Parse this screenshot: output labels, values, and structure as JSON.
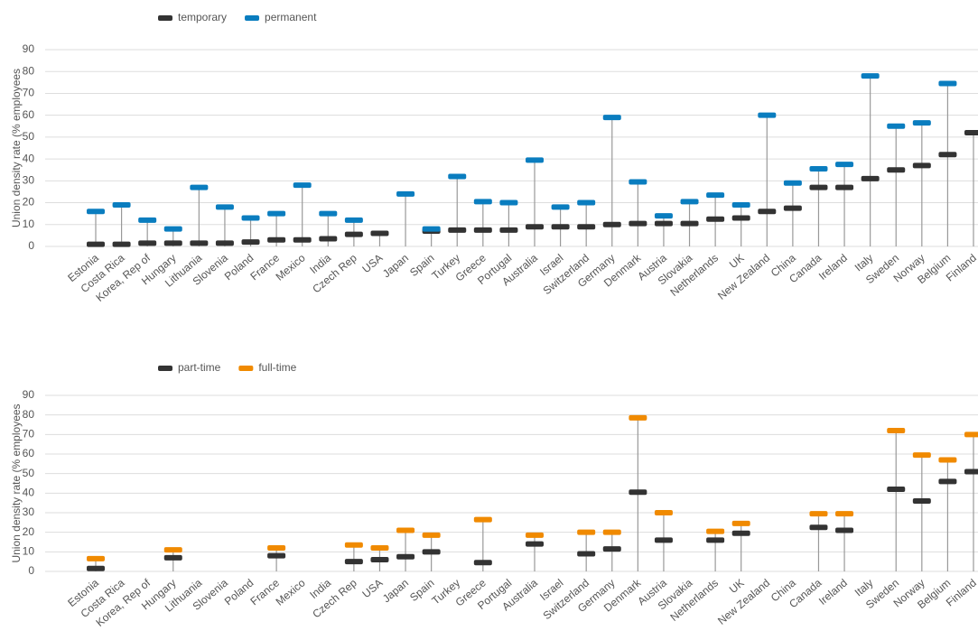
{
  "chart_data": [
    {
      "type": "dot-range",
      "ylabel": "Union density rate (% employees",
      "categories": [
        "Estonia",
        "Costa Rica",
        "Korea, Rep of",
        "Hungary",
        "Lithuania",
        "Slovenia",
        "Poland",
        "France",
        "Mexico",
        "India",
        "Czech Rep",
        "USA",
        "Japan",
        "Spain",
        "Turkey",
        "Greece",
        "Portugal",
        "Australia",
        "Israel",
        "Switzerland",
        "Germany",
        "Denmark",
        "Austria",
        "Slovakia",
        "Netherlands",
        "UK",
        "New Zealand",
        "China",
        "Canada",
        "Ireland",
        "Italy",
        "Sweden",
        "Norway",
        "Belgium",
        "Finland"
      ],
      "series": [
        {
          "name": "temporary",
          "color": "#333333",
          "values": [
            1,
            1,
            1.5,
            1.5,
            1.5,
            1.5,
            2,
            3,
            3,
            3.5,
            5.5,
            6,
            null,
            7,
            7.5,
            7.5,
            7.5,
            9,
            9,
            9,
            10,
            10.5,
            10.5,
            10.5,
            12.5,
            13,
            16,
            17.5,
            27,
            27,
            31,
            35,
            37,
            42,
            52
          ]
        },
        {
          "name": "permanent",
          "color": "#0a7dbf",
          "values": [
            16,
            19,
            12,
            8,
            27,
            18,
            13,
            15,
            28,
            15,
            12,
            null,
            24,
            8,
            32,
            20.5,
            20,
            39.5,
            18,
            20,
            59,
            29.5,
            14,
            20.5,
            23.5,
            19,
            60,
            29,
            35.5,
            37.5,
            78,
            55,
            56.5,
            74.5,
            null
          ]
        }
      ],
      "ylim": [
        0,
        90
      ],
      "yticks": [
        0,
        10,
        20,
        30,
        40,
        50,
        60,
        70,
        80,
        90
      ],
      "grid": true
    },
    {
      "type": "dot-range",
      "ylabel": "Union density rate (% employees",
      "categories": [
        "Estonia",
        "Costa Rica",
        "Korea, Rep of",
        "Hungary",
        "Lithuania",
        "Slovenia",
        "Poland",
        "France",
        "Mexico",
        "India",
        "Czech Rep",
        "USA",
        "Japan",
        "Spain",
        "Turkey",
        "Greece",
        "Portugal",
        "Australia",
        "Israel",
        "Switzerland",
        "Germany",
        "Denmark",
        "Austria",
        "Slovakia",
        "Netherlands",
        "UK",
        "New Zealand",
        "China",
        "Canada",
        "Ireland",
        "Italy",
        "Sweden",
        "Norway",
        "Belgium",
        "Finland"
      ],
      "series": [
        {
          "name": "part-time",
          "color": "#333333",
          "values": [
            1.5,
            null,
            null,
            7,
            null,
            null,
            null,
            8,
            null,
            null,
            5,
            6,
            7.5,
            10,
            null,
            4.5,
            null,
            14,
            null,
            9,
            11.5,
            40.5,
            16,
            null,
            16,
            19.5,
            null,
            null,
            22.5,
            21,
            null,
            42,
            36,
            46,
            51
          ]
        },
        {
          "name": "full-time",
          "color": "#f08a00",
          "values": [
            6.5,
            null,
            null,
            11,
            null,
            null,
            null,
            12,
            null,
            null,
            13.5,
            12,
            21,
            18.5,
            null,
            26.5,
            null,
            18.5,
            null,
            20,
            20,
            78.5,
            30,
            null,
            20.5,
            24.5,
            null,
            null,
            29.5,
            29.5,
            null,
            72,
            59.5,
            57,
            70
          ]
        }
      ],
      "ylim": [
        0,
        90
      ],
      "yticks": [
        0,
        10,
        20,
        30,
        40,
        50,
        60,
        70,
        80,
        90
      ],
      "grid": true
    }
  ]
}
